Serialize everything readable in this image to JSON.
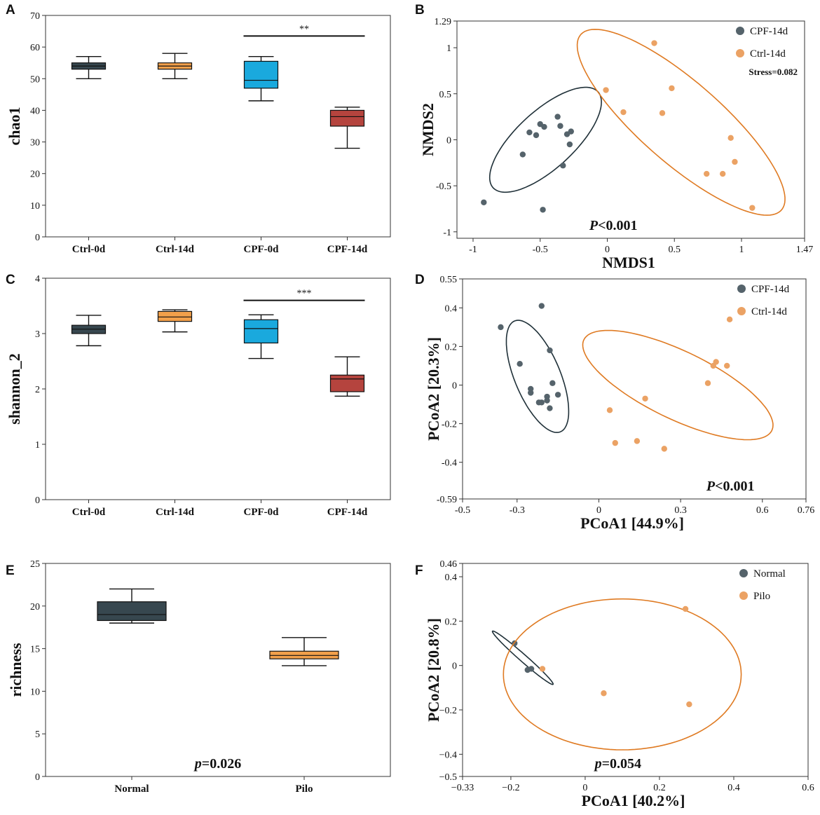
{
  "chart_data": [
    {
      "id": "A",
      "panel_label": "A",
      "type": "box",
      "ylabel": "chao1",
      "ylim": [
        0,
        70
      ],
      "yticks": [
        0,
        10,
        20,
        30,
        40,
        50,
        60,
        70
      ],
      "categories": [
        "Ctrl-0d",
        "Ctrl-14d",
        "CPF-0d",
        "CPF-14d"
      ],
      "colors": [
        "#37474f",
        "#f2a04b",
        "#1aa9dd",
        "#b5443e"
      ],
      "boxes": [
        {
          "min": 50,
          "q1": 53,
          "median": 54,
          "q3": 55,
          "max": 57
        },
        {
          "min": 50,
          "q1": 53,
          "median": 54,
          "q3": 55,
          "max": 58
        },
        {
          "min": 43,
          "q1": 47,
          "median": 49.5,
          "q3": 55.5,
          "max": 57
        },
        {
          "min": 28,
          "q1": 35,
          "median": 38,
          "q3": 40,
          "max": 41
        }
      ],
      "significance": {
        "label": "**",
        "from": 2,
        "to": 3,
        "y": 63.5
      }
    },
    {
      "id": "B",
      "panel_label": "B",
      "type": "scatter",
      "xlabel": "NMDS1",
      "ylabel": "NMDS2",
      "xlim": [
        -1.12,
        1.47
      ],
      "ylim": [
        -1.07,
        1.29
      ],
      "xticks": [
        -1,
        -0.5,
        0,
        0.5,
        1,
        1.47
      ],
      "xtick_labels": [
        "-1",
        "-0.5",
        "0",
        "0.5",
        "1",
        "1.47"
      ],
      "yticks": [
        -1,
        -0.5,
        0,
        0.5,
        1,
        1.29
      ],
      "ytick_labels": [
        "-1",
        "-0.5",
        "0",
        "0.5",
        "1",
        "1.29"
      ],
      "legend": {
        "position": "top-right"
      },
      "stress_label": "Stress=0.082",
      "annotation": {
        "prefix": "P",
        "rest": "<0.001"
      },
      "series": [
        {
          "name": "CPF-14d",
          "color": "#55636b",
          "ellipse_color": "#1f3038",
          "points": [
            [
              -0.92,
              -0.68
            ],
            [
              -0.63,
              -0.16
            ],
            [
              -0.58,
              0.08
            ],
            [
              -0.53,
              0.05
            ],
            [
              -0.5,
              0.17
            ],
            [
              -0.47,
              0.14
            ],
            [
              -0.37,
              0.25
            ],
            [
              -0.35,
              0.15
            ],
            [
              -0.3,
              0.06
            ],
            [
              -0.27,
              0.09
            ],
            [
              -0.28,
              -0.05
            ],
            [
              -0.33,
              -0.28
            ],
            [
              -0.48,
              -0.76
            ]
          ],
          "ellipse": {
            "cx": -0.46,
            "cy": 0.0,
            "rx": 0.66,
            "ry": 0.25,
            "angle": 57
          }
        },
        {
          "name": "Ctrl-14d",
          "color": "#eba264",
          "ellipse_color": "#df7a22",
          "points": [
            [
              0.35,
              1.05
            ],
            [
              -0.01,
              0.54
            ],
            [
              0.12,
              0.3
            ],
            [
              0.41,
              0.29
            ],
            [
              0.48,
              0.56
            ],
            [
              0.92,
              0.02
            ],
            [
              0.95,
              -0.24
            ],
            [
              0.74,
              -0.37
            ],
            [
              0.86,
              -0.37
            ],
            [
              1.08,
              -0.74
            ]
          ],
          "ellipse": {
            "cx": 0.55,
            "cy": 0.19,
            "rx": 1.22,
            "ry": 0.36,
            "angle": -54
          }
        }
      ]
    },
    {
      "id": "C",
      "panel_label": "C",
      "type": "box",
      "ylabel": "shannon_2",
      "ylim": [
        0,
        4
      ],
      "yticks": [
        0,
        1,
        2,
        3,
        4
      ],
      "categories": [
        "Ctrl-0d",
        "Ctrl-14d",
        "CPF-0d",
        "CPF-14d"
      ],
      "colors": [
        "#37474f",
        "#f2a04b",
        "#1aa9dd",
        "#b5443e"
      ],
      "boxes": [
        {
          "min": 2.78,
          "q1": 3.0,
          "median": 3.08,
          "q3": 3.15,
          "max": 3.33
        },
        {
          "min": 3.03,
          "q1": 3.22,
          "median": 3.3,
          "q3": 3.4,
          "max": 3.43
        },
        {
          "min": 2.55,
          "q1": 2.83,
          "median": 3.09,
          "q3": 3.25,
          "max": 3.34
        },
        {
          "min": 1.87,
          "q1": 1.95,
          "median": 2.18,
          "q3": 2.25,
          "max": 2.58
        }
      ],
      "significance": {
        "label": "***",
        "from": 2,
        "to": 3,
        "y": 3.6
      }
    },
    {
      "id": "D",
      "panel_label": "D",
      "type": "scatter",
      "xlabel": "PCoA1 [44.9%]",
      "ylabel": "PCoA2 [20.3%]",
      "xlim": [
        -0.5,
        0.76
      ],
      "ylim": [
        -0.59,
        0.55
      ],
      "xticks": [
        -0.5,
        -0.3,
        0,
        0.3,
        0.6,
        0.76
      ],
      "xtick_labels": [
        "-0.5",
        "-0.3",
        "0",
        "0.3",
        "0.6",
        "0.76"
      ],
      "yticks": [
        -0.59,
        -0.4,
        -0.2,
        0,
        0.2,
        0.4,
        0.55
      ],
      "ytick_labels": [
        "-0.59",
        "-0.4",
        "-0.2",
        "0",
        "0.2",
        "0.4",
        "0.55"
      ],
      "legend": {
        "position": "top-right"
      },
      "annotation": {
        "prefix": "P",
        "rest": "<0.001"
      },
      "series": [
        {
          "name": "CPF-14d",
          "color": "#55636b",
          "ellipse_color": "#1f3038",
          "points": [
            [
              -0.36,
              0.3
            ],
            [
              -0.21,
              0.41
            ],
            [
              -0.29,
              0.11
            ],
            [
              -0.25,
              -0.02
            ],
            [
              -0.25,
              -0.04
            ],
            [
              -0.22,
              -0.09
            ],
            [
              -0.21,
              -0.09
            ],
            [
              -0.19,
              -0.06
            ],
            [
              -0.19,
              -0.08
            ],
            [
              -0.18,
              -0.12
            ],
            [
              -0.18,
              0.18
            ],
            [
              -0.17,
              0.01
            ],
            [
              -0.15,
              -0.05
            ]
          ],
          "ellipse": {
            "cx": -0.225,
            "cy": 0.045,
            "rx": 0.3,
            "ry": 0.087,
            "angle": -75
          }
        },
        {
          "name": "Ctrl-14d",
          "color": "#eba264",
          "ellipse_color": "#df7a22",
          "points": [
            [
              0.48,
              0.34
            ],
            [
              0.43,
              0.12
            ],
            [
              0.42,
              0.1
            ],
            [
              0.47,
              0.1
            ],
            [
              0.4,
              0.01
            ],
            [
              0.17,
              -0.07
            ],
            [
              0.04,
              -0.13
            ],
            [
              0.06,
              -0.3
            ],
            [
              0.14,
              -0.29
            ],
            [
              0.24,
              -0.33
            ]
          ],
          "ellipse": {
            "cx": 0.29,
            "cy": 0.0,
            "rx": 0.42,
            "ry": 0.16,
            "angle": -37
          }
        }
      ]
    },
    {
      "id": "E",
      "panel_label": "E",
      "type": "box",
      "ylabel": "richness",
      "ylim": [
        0,
        25
      ],
      "yticks": [
        0,
        5,
        10,
        15,
        20,
        25
      ],
      "categories": [
        "Normal",
        "Pilo"
      ],
      "colors": [
        "#37474f",
        "#f2a04b"
      ],
      "boxes": [
        {
          "min": 18,
          "q1": 18.3,
          "median": 19,
          "q3": 20.5,
          "max": 22
        },
        {
          "min": 13,
          "q1": 13.8,
          "median": 14.2,
          "q3": 14.7,
          "max": 16.3
        }
      ],
      "annotation": {
        "prefix": "p",
        "rest": "=0.026"
      }
    },
    {
      "id": "F",
      "panel_label": "F",
      "type": "scatter",
      "xlabel": "PCoA1 [40.2%]",
      "ylabel": "PCoA2 [20.8%]",
      "xlim": [
        -0.33,
        0.6
      ],
      "ylim": [
        -0.5,
        0.46
      ],
      "xticks": [
        -0.33,
        -0.2,
        0,
        0.2,
        0.4,
        0.6
      ],
      "xtick_labels": [
        "−0.33",
        "−0.2",
        "0",
        "0.2",
        "0.4",
        "0.6"
      ],
      "yticks": [
        -0.5,
        -0.4,
        -0.2,
        0,
        0.2,
        0.4,
        0.46
      ],
      "ytick_labels": [
        "−0.5",
        "−0.4",
        "−0.2",
        "0",
        "0.2",
        "0.4",
        "0.46"
      ],
      "legend": {
        "position": "top-right"
      },
      "annotation": {
        "prefix": "p",
        "rest": "=0.054"
      },
      "series": [
        {
          "name": "Normal",
          "color": "#55636b",
          "ellipse_color": "#1f3038",
          "points": [
            [
              -0.19,
              0.1
            ],
            [
              -0.155,
              -0.02
            ],
            [
              -0.145,
              -0.015
            ]
          ],
          "ellipse": {
            "cx": -0.168,
            "cy": 0.035,
            "rx": 0.145,
            "ry": 0.012,
            "angle": -56
          }
        },
        {
          "name": "Pilo",
          "color": "#eba264",
          "ellipse_color": "#df7a22",
          "points": [
            [
              -0.115,
              -0.015
            ],
            [
              0.05,
              -0.125
            ],
            [
              0.27,
              0.255
            ],
            [
              0.28,
              -0.175
            ]
          ],
          "ellipse": {
            "cx": 0.1,
            "cy": -0.04,
            "rx": 0.32,
            "ry": 0.34,
            "angle": 0
          }
        }
      ]
    }
  ]
}
